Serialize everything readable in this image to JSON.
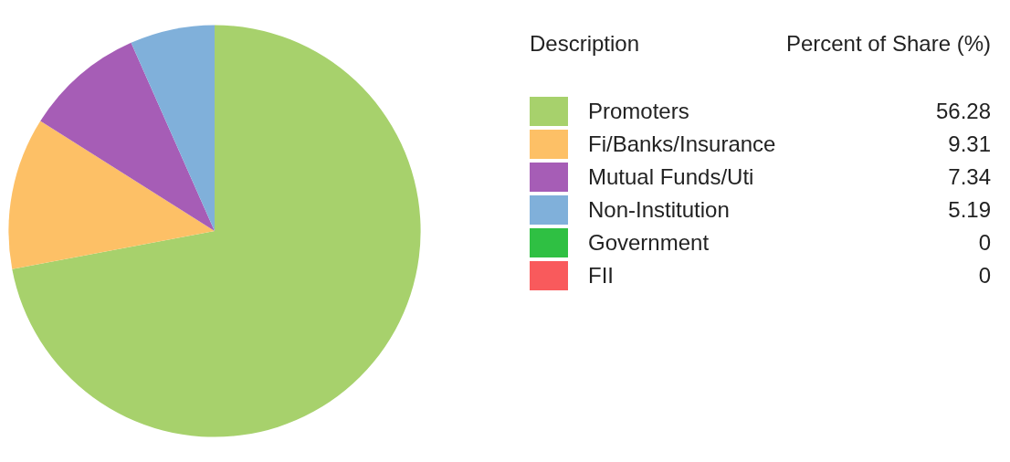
{
  "chart_data": {
    "type": "pie",
    "legend_title": "Description",
    "annotations": [
      "Percent of Share (%)"
    ],
    "categories": [
      "Promoters",
      "Fi/Banks/Insurance",
      "Mutual Funds/Uti",
      "Non-Institution",
      "Government",
      "FII"
    ],
    "values": [
      56.28,
      9.31,
      7.34,
      5.19,
      0,
      0
    ],
    "colors": [
      "#a7d16c",
      "#fdc066",
      "#a65db6",
      "#80b0da",
      "#2fc043",
      "#f95a5c"
    ],
    "value_labels": [
      "56.28",
      "9.31",
      "7.34",
      "5.19",
      "0",
      "0"
    ],
    "legend": "right"
  }
}
